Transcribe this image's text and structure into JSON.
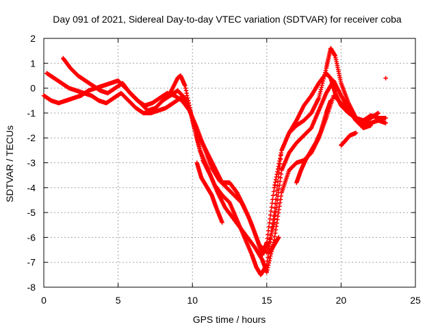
{
  "chart_data": {
    "type": "scatter",
    "title": "Day 091 of 2021, Sidereal Day-to-day VTEC variation (SDTVAR) for receiver coba",
    "xlabel": "GPS time / hours",
    "ylabel": "SDTVAR / TECUs",
    "xlim": [
      0,
      25
    ],
    "ylim": [
      -8,
      2
    ],
    "xticks": [
      0,
      5,
      10,
      15,
      20,
      25
    ],
    "yticks": [
      -8,
      -7,
      -6,
      -5,
      -4,
      -3,
      -2,
      -1,
      0,
      1,
      2
    ],
    "grid": true,
    "legend": "none",
    "marker": "+",
    "color": "#ff0000",
    "series": [
      {
        "x": [
          0.0,
          0.5,
          1.0,
          1.5,
          2.0,
          2.5,
          3.0,
          3.5,
          4.0,
          4.5,
          5.0,
          5.5,
          6.0,
          6.5,
          7.0,
          7.5,
          8.0,
          8.5,
          9.0,
          9.2,
          9.5,
          10.0,
          10.5,
          11.0,
          11.5,
          12.0,
          12.5,
          13.0,
          13.5,
          14.0,
          14.3,
          14.6,
          15.0,
          15.5,
          16.0,
          16.5,
          17.0,
          17.5,
          18.0,
          18.5,
          19.0,
          19.3,
          19.6,
          20.0,
          20.5,
          21.0,
          21.5,
          22.0,
          22.5,
          23.0
        ],
        "y": [
          -0.3,
          -0.5,
          -0.6,
          -0.5,
          -0.4,
          -0.3,
          -0.1,
          0.0,
          0.1,
          0.2,
          0.3,
          0.0,
          -0.3,
          -0.6,
          -0.9,
          -0.8,
          -0.5,
          -0.2,
          0.4,
          0.5,
          0.1,
          -1.3,
          -2.5,
          -3.2,
          -3.9,
          -4.3,
          -4.6,
          -5.3,
          -6.0,
          -6.7,
          -7.2,
          -7.5,
          -7.1,
          -5.0,
          -2.5,
          -1.8,
          -1.3,
          -0.7,
          -0.3,
          0.2,
          0.6,
          0.4,
          -0.2,
          -0.7,
          -1.0,
          -1.2,
          -1.3,
          -1.1,
          -1.2,
          -1.2
        ]
      },
      {
        "x": [
          1.3,
          1.8,
          2.3,
          2.8,
          3.3,
          3.8,
          4.3,
          4.8,
          5.3,
          5.8,
          6.3,
          6.8,
          7.3,
          7.8,
          8.3,
          8.8,
          9.3,
          9.8,
          10.3,
          10.8,
          11.3,
          11.8,
          12.3,
          12.8,
          13.3,
          13.8,
          14.3,
          14.7,
          15.0,
          15.5,
          16.0,
          16.5,
          17.0,
          17.5,
          18.0,
          18.5,
          19.0,
          19.3,
          19.6,
          20.0,
          20.5,
          21.0,
          21.5,
          22.0,
          22.5,
          23.0
        ],
        "y": [
          1.2,
          0.8,
          0.5,
          0.3,
          0.1,
          -0.1,
          -0.2,
          0.0,
          0.2,
          -0.2,
          -0.5,
          -0.7,
          -0.6,
          -0.4,
          -0.2,
          -0.3,
          -0.5,
          -0.9,
          -1.6,
          -2.4,
          -3.2,
          -3.7,
          -4.0,
          -4.3,
          -4.6,
          -5.2,
          -6.0,
          -6.7,
          -6.2,
          -4.0,
          -2.5,
          -1.8,
          -1.5,
          -1.3,
          -1.0,
          -0.4,
          0.8,
          1.6,
          1.3,
          0.2,
          -0.6,
          -1.2,
          -1.5,
          -1.4,
          -1.3,
          -1.4
        ]
      },
      {
        "x": [
          0.2,
          0.7,
          1.2,
          1.7,
          2.2,
          2.7,
          3.2,
          3.7,
          4.2,
          4.7,
          5.2,
          5.7,
          6.2,
          6.7,
          7.2,
          7.7,
          8.2,
          8.7,
          9.2,
          9.7,
          10.2,
          10.7,
          11.2,
          11.7,
          12.2,
          12.7,
          13.2,
          13.7,
          14.2,
          14.7,
          15.0,
          15.5,
          16.0,
          16.5,
          17.0,
          17.5,
          18.0,
          18.5,
          19.0,
          19.5,
          20.0,
          20.5,
          21.0,
          21.5,
          22.0,
          22.5
        ],
        "y": [
          0.6,
          0.4,
          0.2,
          0.0,
          -0.1,
          -0.2,
          -0.3,
          -0.5,
          -0.6,
          -0.4,
          -0.2,
          -0.5,
          -0.8,
          -1.0,
          -1.0,
          -0.9,
          -0.8,
          -0.6,
          -0.4,
          -0.5,
          -1.8,
          -2.9,
          -3.5,
          -4.2,
          -4.8,
          -5.2,
          -5.6,
          -6.0,
          -6.4,
          -6.9,
          -7.4,
          -6.1,
          -4.2,
          -3.3,
          -3.0,
          -2.9,
          -2.6,
          -2.0,
          -1.2,
          -0.3,
          -0.6,
          -0.9,
          -1.3,
          -1.4,
          -1.2,
          -1.0
        ]
      },
      {
        "x": [
          8.0,
          8.5,
          9.0,
          9.5,
          10.0,
          10.5,
          11.0,
          11.5,
          12.0,
          12.5,
          13.0,
          13.5,
          14.0,
          14.5,
          15.0,
          15.5,
          16.0,
          16.5,
          17.0,
          17.5,
          18.0,
          18.5,
          19.0,
          19.5,
          20.0,
          20.5,
          21.0,
          21.5,
          22.0
        ],
        "y": [
          -0.5,
          -0.3,
          -0.1,
          -0.4,
          -1.2,
          -2.0,
          -2.6,
          -3.2,
          -3.8,
          -3.8,
          -4.2,
          -4.8,
          -5.5,
          -6.3,
          -6.6,
          -5.4,
          -3.3,
          -2.6,
          -2.2,
          -1.9,
          -1.6,
          -0.9,
          -0.2,
          0.3,
          -0.3,
          -0.8,
          -1.3,
          -1.6,
          -1.5
        ]
      },
      {
        "x": [
          10.3,
          10.6,
          11.0,
          11.3,
          11.6,
          12.0
        ],
        "y": [
          -3.0,
          -3.6,
          -4.0,
          -4.3,
          -4.8,
          -5.4
        ]
      },
      {
        "x": [
          17.0,
          17.3,
          17.6,
          18.0,
          18.3,
          18.6,
          19.0,
          19.3
        ],
        "y": [
          -3.8,
          -3.3,
          -2.9,
          -2.5,
          -2.2,
          -1.8,
          -1.0,
          -0.5
        ]
      },
      {
        "x": [
          20.0,
          20.3,
          20.6,
          21.0
        ],
        "y": [
          -2.3,
          -2.1,
          -1.9,
          -1.8
        ]
      },
      {
        "x": [
          15.2,
          15.5,
          15.8
        ],
        "y": [
          -6.6,
          -6.3,
          -6.0
        ]
      },
      {
        "x": [
          23.0
        ],
        "y": [
          0.4
        ]
      }
    ]
  }
}
